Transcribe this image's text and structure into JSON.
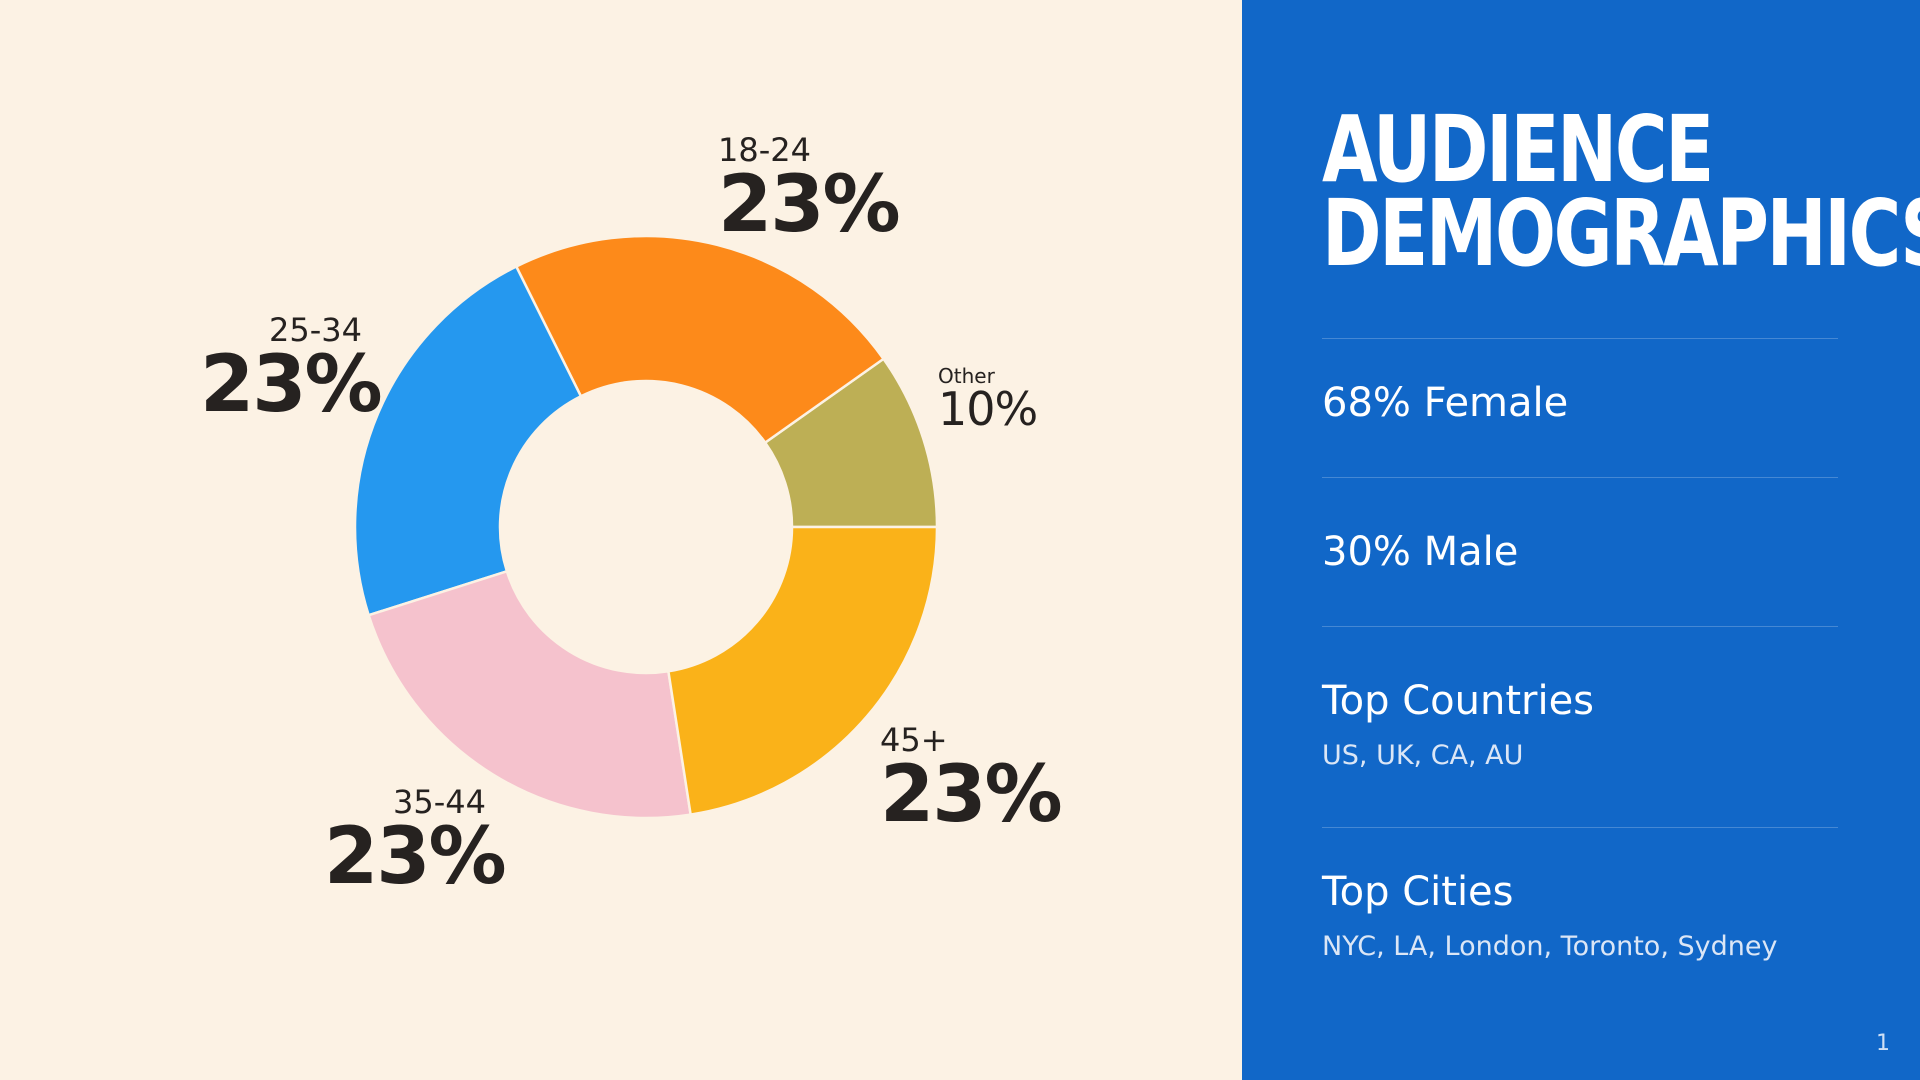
{
  "panel": {
    "title_line1": "AUDIENCE",
    "title_line2": "DEMOGRAPHICS",
    "female": "68% Female",
    "male": "30% Male",
    "countries_label": "Top Countries",
    "countries_value": "US, UK, CA, AU",
    "cities_label": "Top Cities",
    "cities_value": "NYC, LA, London, Toronto, Sydney",
    "page_number": "1"
  },
  "colors": {
    "background": "#fcf2e4",
    "panel": "#1167c8",
    "text_dark": "#262220"
  },
  "chart_data": {
    "type": "pie",
    "variant": "donut",
    "categories": [
      "Other",
      "45+",
      "35-44",
      "25-34",
      "18-24"
    ],
    "values": [
      10,
      23,
      23,
      23,
      23
    ],
    "labels": [
      "10%",
      "23%",
      "23%",
      "23%",
      "23%"
    ],
    "colors": [
      "#bdaf55",
      "#fd8a1a",
      "#2598ef",
      "#f5c2cd",
      "#fab219"
    ],
    "start_angle_deg": 0,
    "direction": "counterclockwise-from-3-oclock",
    "legend": "none"
  }
}
